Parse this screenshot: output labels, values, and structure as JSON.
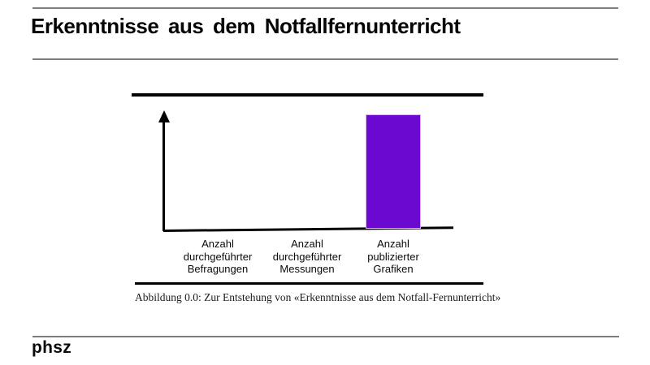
{
  "slide": {
    "title": "Erkenntnisse aus dem Notfallfernunterricht",
    "footer_logo": "phsz"
  },
  "figure": {
    "caption": "Abbildung 0.0: Zur Entstehung von «Erkenntnisse aus dem Notfall-Fernunterricht»"
  },
  "chart_data": {
    "type": "bar",
    "title": "",
    "xlabel": "",
    "ylabel": "",
    "categories": [
      "Anzahl durchgeführter Befragungen",
      "Anzahl durchgeführter Messungen",
      "Anzahl publizierter Grafiken"
    ],
    "categories_lines": [
      [
        "Anzahl",
        "durchgeführter",
        "Befragungen"
      ],
      [
        "Anzahl",
        "durchgeführter",
        "Messungen"
      ],
      [
        "Anzahl",
        "publizierter",
        "Grafiken"
      ]
    ],
    "values": [
      0,
      0,
      1
    ],
    "ylim": [
      0,
      1
    ],
    "grid": false,
    "legend_position": "none",
    "axis_style": "hand-drawn y-axis with arrow, slightly slanted x-axis, no tick marks or numeric labels",
    "bar_color": "#6c09d0"
  },
  "colors": {
    "background": "#ffffff",
    "rule_gray": "#7f7f7f",
    "axis_black": "#000000",
    "bar": "#6c09d0",
    "text": "#000000"
  }
}
